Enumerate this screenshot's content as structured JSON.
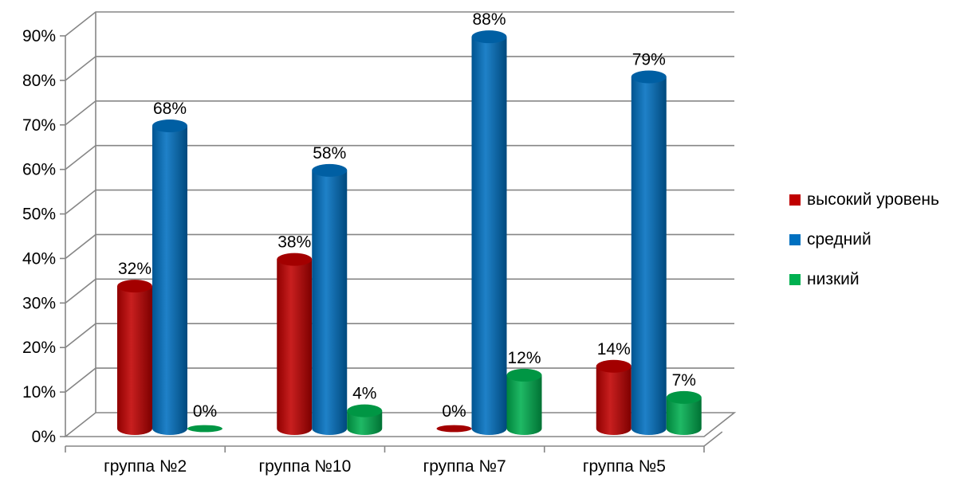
{
  "chart_data": {
    "type": "bar",
    "variant": "3d-cylinder-clustered",
    "title": "",
    "xlabel": "",
    "ylabel": "",
    "categories": [
      "группа №2",
      "группа №10",
      "группа №7",
      "группа №5"
    ],
    "series": [
      {
        "name": "высокий уровень",
        "color": "#C00000",
        "values": [
          32,
          38,
          0,
          14
        ],
        "labels": [
          "32%",
          "38%",
          "0%",
          "14%"
        ]
      },
      {
        "name": "средний",
        "color": "#0070C0",
        "values": [
          68,
          58,
          88,
          79
        ],
        "labels": [
          "68%",
          "58%",
          "88%",
          "79%"
        ]
      },
      {
        "name": "низкий",
        "color": "#00B050",
        "values": [
          0,
          4,
          12,
          7
        ],
        "labels": [
          "0%",
          "4%",
          "12%",
          "7%"
        ]
      }
    ],
    "ylim": [
      0,
      90
    ],
    "yticks": [
      0,
      10,
      20,
      30,
      40,
      50,
      60,
      70,
      80,
      90
    ],
    "ytick_labels": [
      "0%",
      "10%",
      "20%",
      "30%",
      "40%",
      "50%",
      "60%",
      "70%",
      "80%",
      "90%"
    ],
    "grid": true,
    "legend_position": "right"
  }
}
